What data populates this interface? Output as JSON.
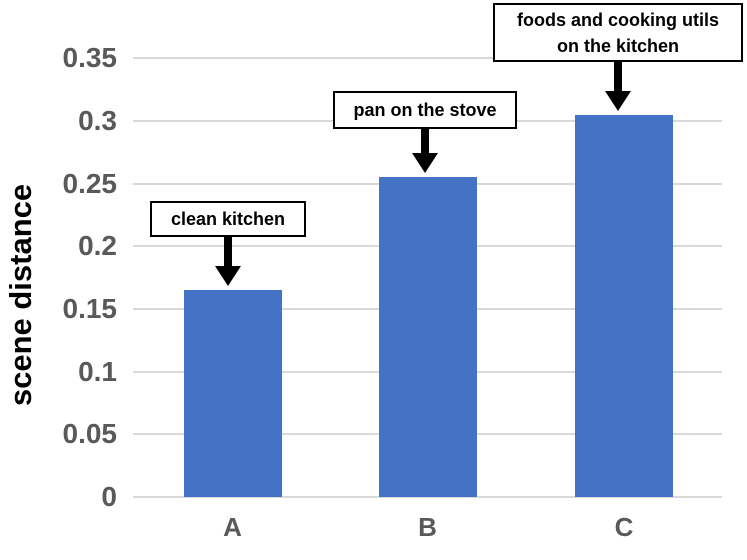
{
  "chart_data": {
    "type": "bar",
    "title": "",
    "ylabel": "scene distance",
    "xlabel": "",
    "categories": [
      "A",
      "B",
      "C"
    ],
    "values": [
      0.165,
      0.255,
      0.305
    ],
    "ylim": [
      0,
      0.35
    ],
    "ytick_step": 0.05,
    "yticks": [
      "0",
      "0.05",
      "0.1",
      "0.15",
      "0.2",
      "0.25",
      "0.3",
      "0.35"
    ],
    "grid": true,
    "legend_position": "none",
    "annotations": [
      {
        "category": "A",
        "text": "clean kitchen"
      },
      {
        "category": "B",
        "text": "pan on the stove"
      },
      {
        "category": "C",
        "text": "foods and cooking utils\non the kitchen"
      }
    ],
    "colors": {
      "bar": "#4472C4",
      "gridline": "#D9D9D9",
      "axis_text": "#595959",
      "ylabel_text": "#000000",
      "annotation_border": "#000000",
      "annotation_bg": "#FFFFFF",
      "annotation_text": "#000000",
      "background": "#FFFFFF"
    }
  }
}
